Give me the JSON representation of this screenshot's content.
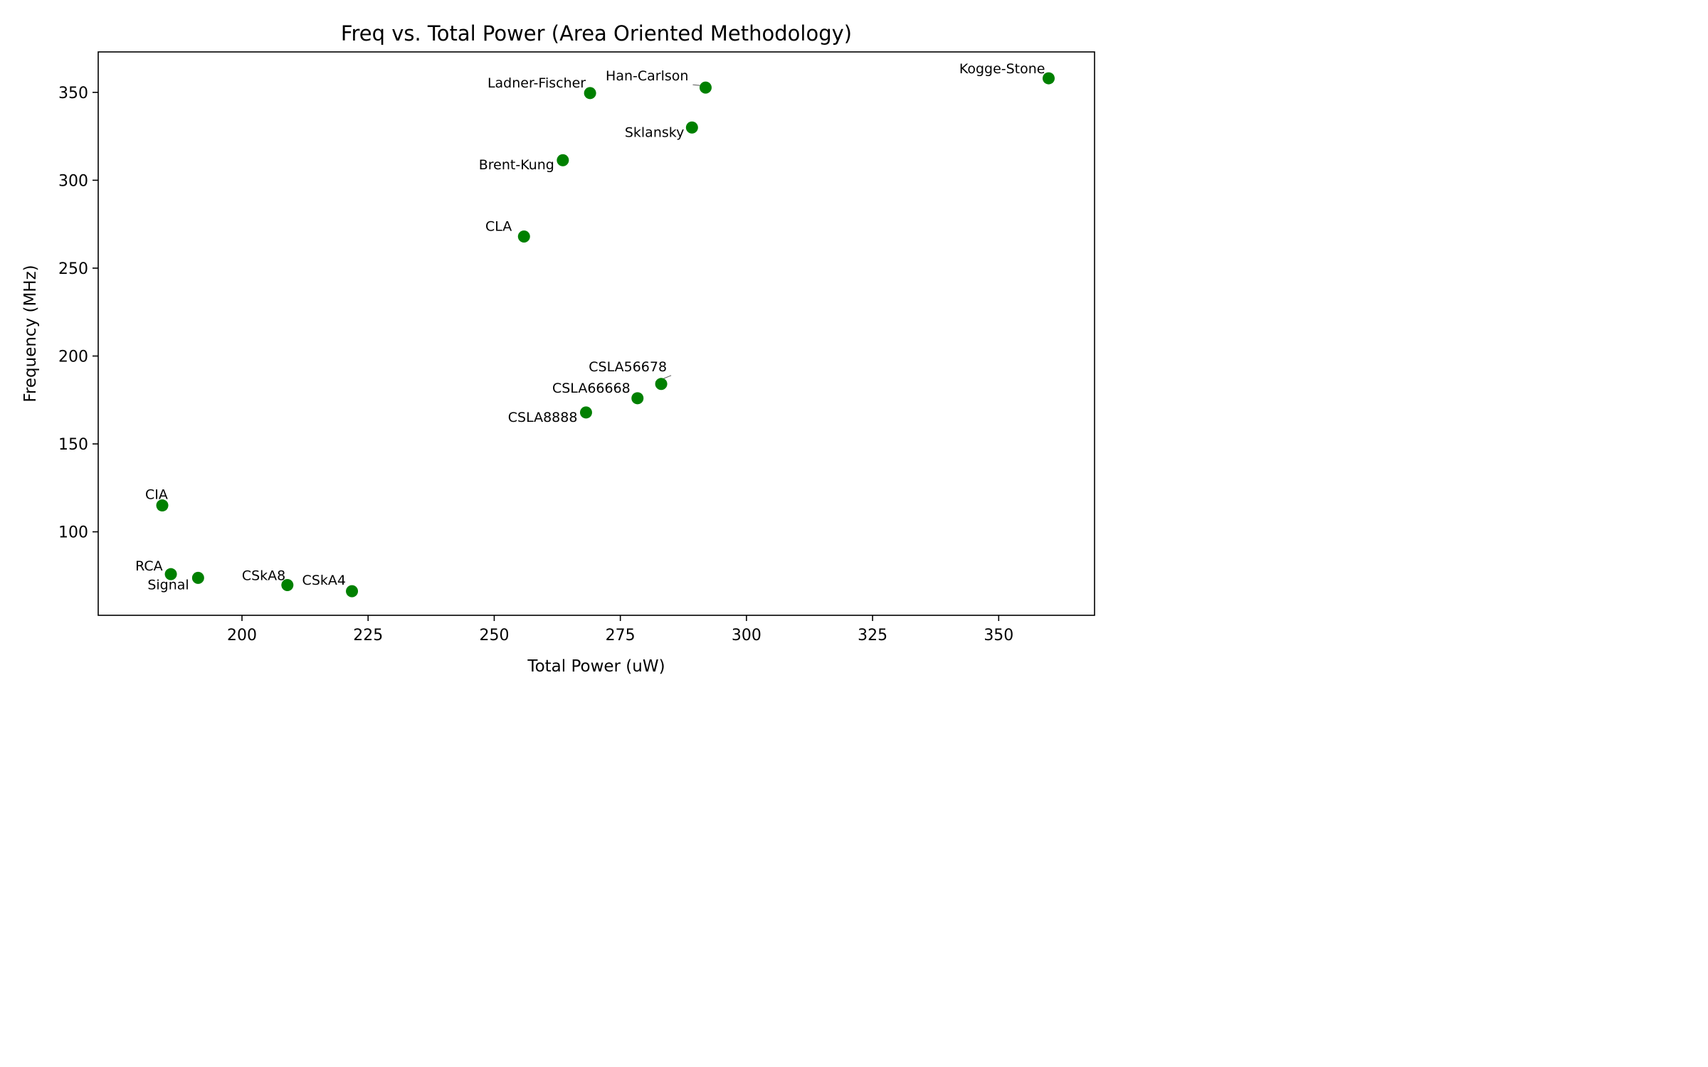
{
  "chart_data": {
    "type": "scatter",
    "title": "Freq vs. Total Power (Area Oriented Methodology)",
    "xlabel": "Total Power (uW)",
    "ylabel": "Frequency (MHz)",
    "xlim": [
      171.5,
      369.0
    ],
    "ylim": [
      52.5,
      373.0
    ],
    "xticks": [
      200,
      225,
      250,
      275,
      300,
      325,
      350
    ],
    "yticks": [
      100,
      150,
      200,
      250,
      300,
      350
    ],
    "grid": false,
    "marker_color": "#008000",
    "points": [
      {
        "label": "Kogge-Stone",
        "x": 359.9,
        "y": 358.0
      },
      {
        "label": "Han-Carlson",
        "x": 291.9,
        "y": 352.7
      },
      {
        "label": "Ladner-Fischer",
        "x": 269.0,
        "y": 349.6
      },
      {
        "label": "Sklansky",
        "x": 289.2,
        "y": 330.0
      },
      {
        "label": "Brent-Kung",
        "x": 263.6,
        "y": 311.4
      },
      {
        "label": "CLA",
        "x": 255.9,
        "y": 268.0
      },
      {
        "label": "CSLA56678",
        "x": 283.1,
        "y": 184.1
      },
      {
        "label": "CSLA66668",
        "x": 278.4,
        "y": 176.0
      },
      {
        "label": "CSLA8888",
        "x": 268.2,
        "y": 167.9
      },
      {
        "label": "CIA",
        "x": 184.2,
        "y": 115.0
      },
      {
        "label": "RCA",
        "x": 185.9,
        "y": 75.9
      },
      {
        "label": "Signal",
        "x": 191.3,
        "y": 73.8
      },
      {
        "label": "CSkA8",
        "x": 209.0,
        "y": 69.7
      },
      {
        "label": "CSkA4",
        "x": 221.8,
        "y": 66.2
      }
    ]
  }
}
